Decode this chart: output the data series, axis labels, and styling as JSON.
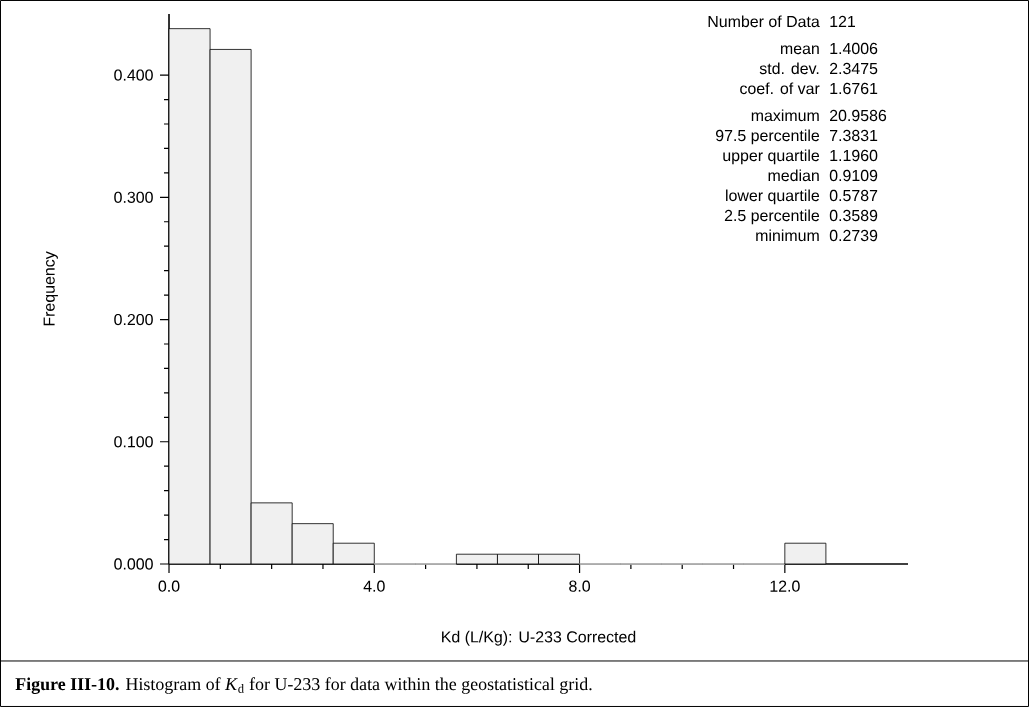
{
  "chart_data": {
    "type": "histogram",
    "bins": [
      0,
      0.8,
      1.6,
      2.4,
      3.2,
      4.0,
      4.8,
      5.6,
      6.4,
      7.2,
      8.0,
      8.8,
      9.6,
      10.4,
      11.2,
      12.0,
      12.8
    ],
    "values": [
      0.438,
      0.421,
      0.05,
      0.033,
      0.017,
      0,
      0,
      0.008,
      0.008,
      0.008,
      0,
      0,
      0,
      0,
      0,
      0.017
    ],
    "color": "#f0f0f0",
    "xlim": [
      0,
      14.4
    ],
    "ylim": [
      0,
      0.45
    ],
    "xticks": [
      {
        "value": 0,
        "label": "0.0"
      },
      {
        "value": 4,
        "label": "4.0"
      },
      {
        "value": 8,
        "label": "8.0"
      },
      {
        "value": 12,
        "label": "12.0"
      }
    ],
    "yticks": [
      {
        "value": 0,
        "label": "0.000"
      },
      {
        "value": 0.1,
        "label": "0.100"
      },
      {
        "value": 0.2,
        "label": "0.200"
      },
      {
        "value": 0.3,
        "label": "0.300"
      },
      {
        "value": 0.4,
        "label": "0.400"
      }
    ],
    "xlabel": "Kd (L/Kg): U-233 Corrected",
    "ylabel": "Frequency",
    "annotations": [
      "Number of Data",
      "121",
      "mean",
      "1.4006",
      "std. dev.",
      "2.3475",
      "coef. of var",
      "1.6761",
      "maximum",
      "20.9586",
      "97.5 percentile",
      "7.3831",
      "upper quartile",
      "1.1960",
      "median",
      "0.9109",
      "lower quartile",
      "0.5787",
      "2.5 percentile",
      "0.3589",
      "minimum",
      "0.2739",
      "**Figure III-10.**  Histogram of *K*$_{d}$ for U-233 for data within the geostatistical grid."
    ]
  }
}
